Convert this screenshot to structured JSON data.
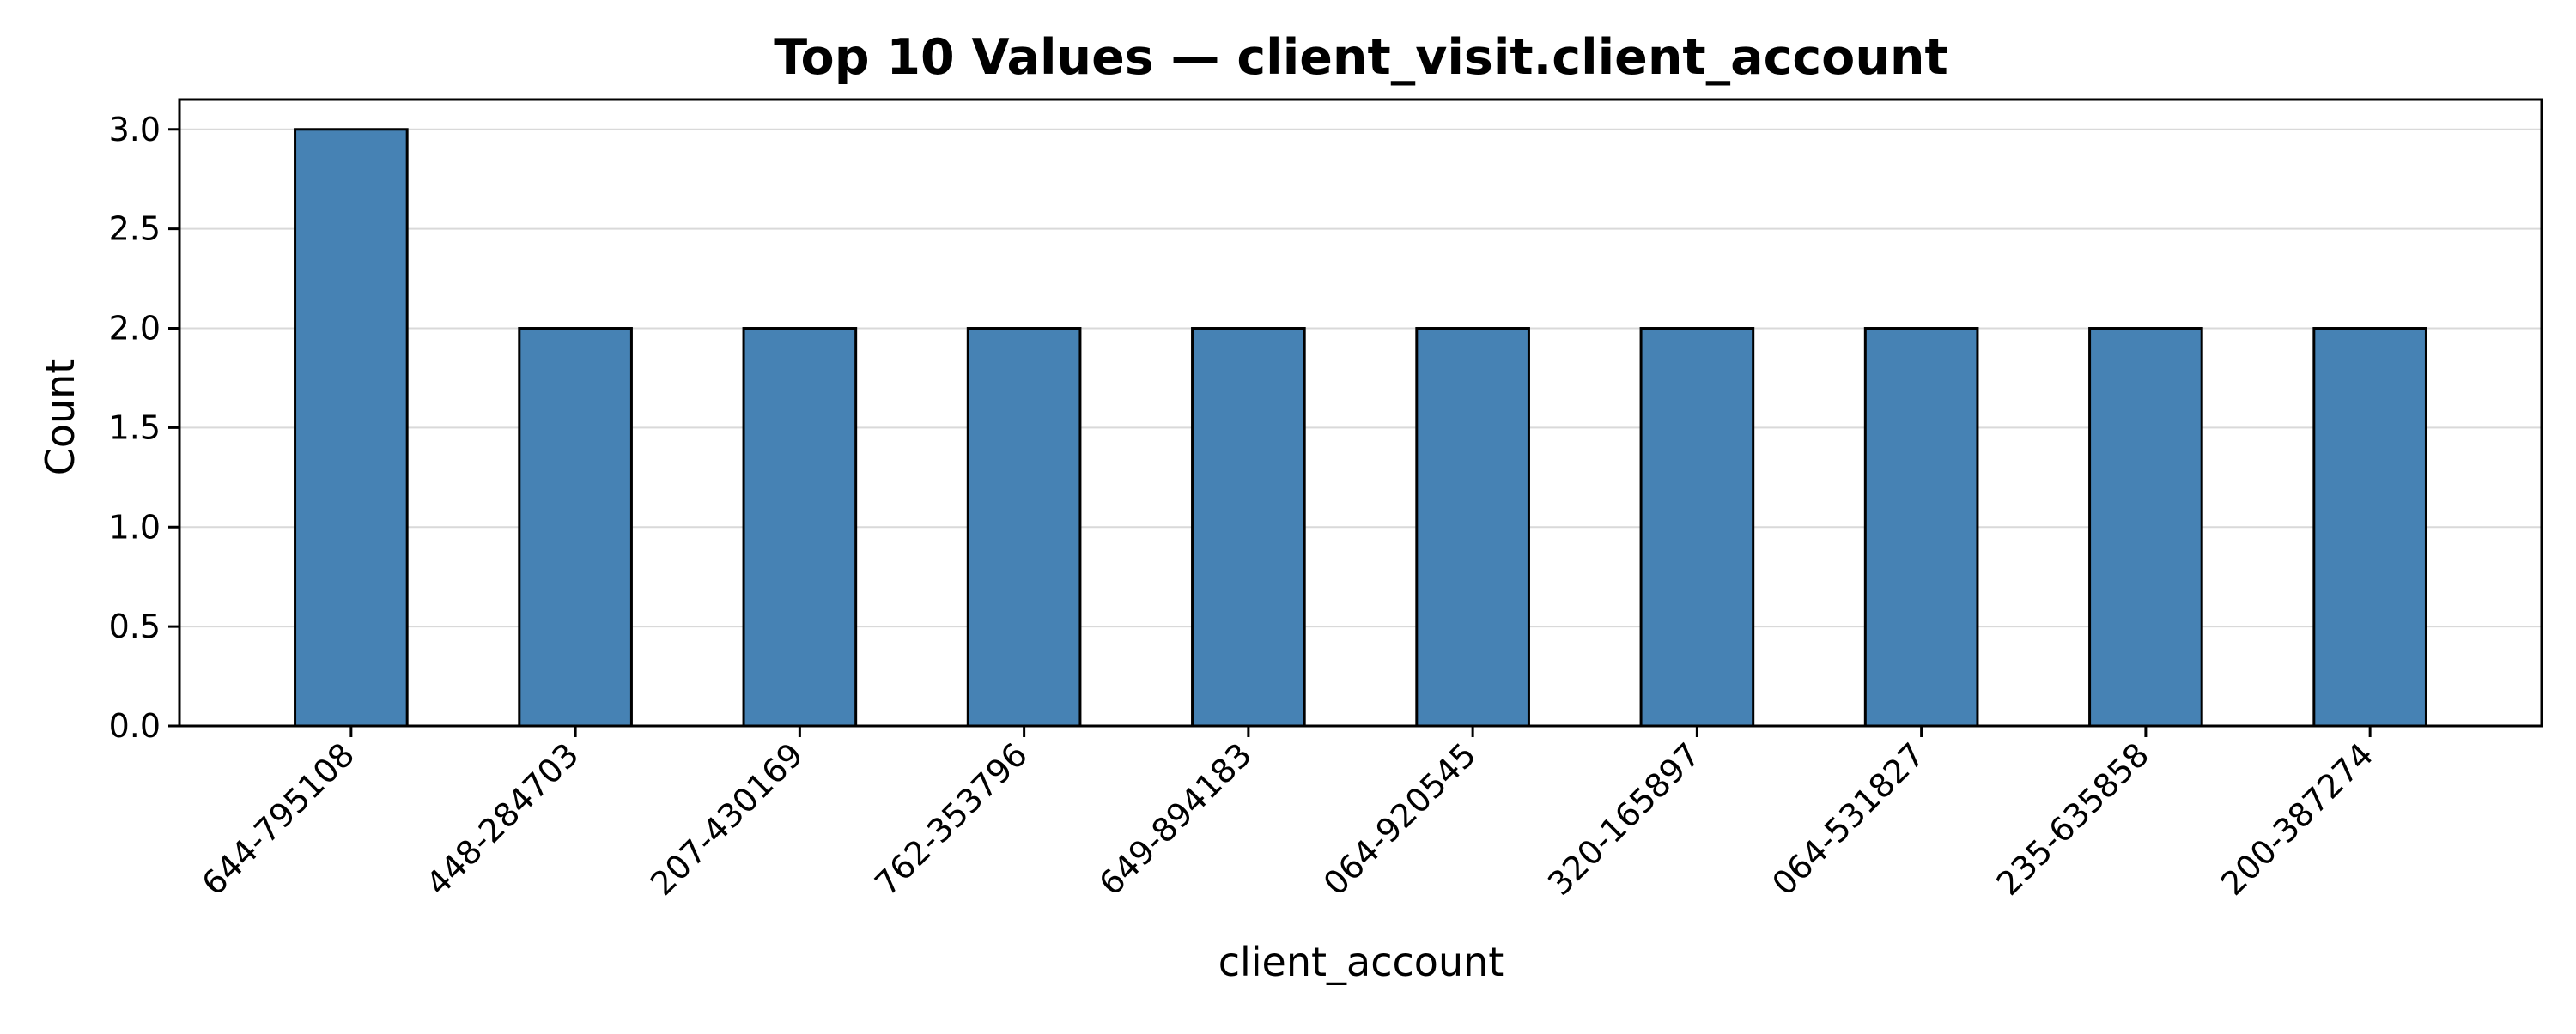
{
  "chart_data": {
    "type": "bar",
    "title": "Top 10 Values — client_visit.client_account",
    "xlabel": "client_account",
    "ylabel": "Count",
    "categories": [
      "644-795108",
      "448-284703",
      "207-430169",
      "762-353796",
      "649-894183",
      "064-920545",
      "320-165897",
      "064-531827",
      "235-635858",
      "200-387274"
    ],
    "values": [
      3,
      2,
      2,
      2,
      2,
      2,
      2,
      2,
      2,
      2
    ],
    "ylim": [
      0,
      3.15
    ],
    "yticks": [
      "0.0",
      "0.5",
      "1.0",
      "1.5",
      "2.0",
      "2.5",
      "3.0"
    ],
    "grid": "y",
    "legend": "none",
    "colors": {
      "bar_fill": "#4682b4",
      "bar_edge": "#000000",
      "grid": "#d9d9d9",
      "axis": "#000000"
    }
  }
}
